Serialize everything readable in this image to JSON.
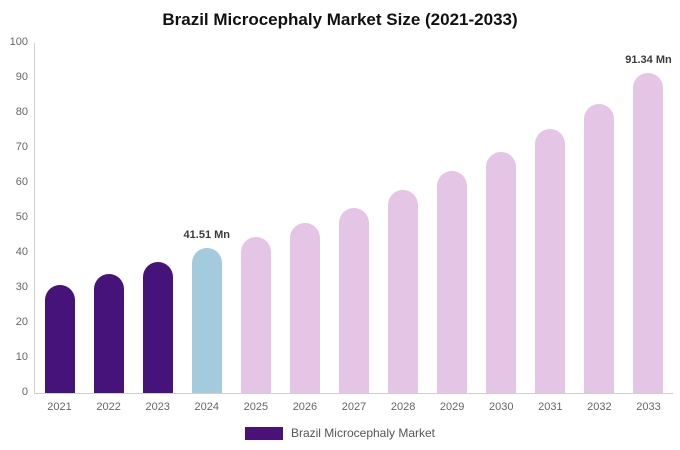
{
  "chart_data": {
    "type": "bar",
    "title": "Brazil Microcephaly Market Size (2021-2033)",
    "xlabel": "",
    "ylabel": "",
    "categories": [
      "2021",
      "2022",
      "2023",
      "2024",
      "2025",
      "2026",
      "2027",
      "2028",
      "2029",
      "2030",
      "2031",
      "2032",
      "2033"
    ],
    "values": [
      31,
      34,
      37.5,
      41.51,
      44.5,
      48.5,
      53,
      58,
      63.5,
      69,
      75.5,
      82.5,
      91.34
    ],
    "unit": "Mn",
    "ylim": [
      0,
      100
    ],
    "yticks": [
      0,
      10,
      20,
      30,
      40,
      50,
      60,
      70,
      80,
      90,
      100
    ],
    "grid": false,
    "bar_colors": [
      "#45137a",
      "#45137a",
      "#45137a",
      "#a4cbdd",
      "#e5c5e5",
      "#e5c5e5",
      "#e5c5e5",
      "#e5c5e5",
      "#e5c5e5",
      "#e5c5e5",
      "#e5c5e5",
      "#e5c5e5",
      "#e5c5e5"
    ],
    "annotations": [
      {
        "category": "2024",
        "text": "41.51 Mn"
      },
      {
        "category": "2033",
        "text": "91.34 Mn"
      }
    ],
    "legend_position": "bottom",
    "legend": [
      {
        "label": "Brazil Microcephaly Market",
        "color": "#4a1278"
      }
    ]
  }
}
